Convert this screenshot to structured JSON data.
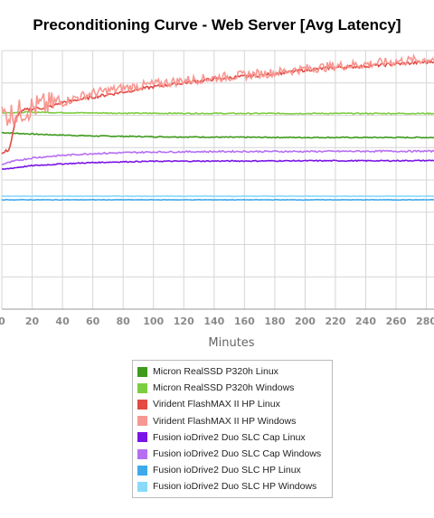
{
  "chart_data": {
    "type": "line",
    "title": "Preconditioning Curve - Web Server [Avg Latency]",
    "xlabel": "Minutes",
    "ylabel": "",
    "xlim": [
      0,
      285
    ],
    "ylim": [
      0,
      1
    ],
    "x_ticks": [
      "0",
      "20",
      "40",
      "60",
      "80",
      "100",
      "120",
      "140",
      "160",
      "180",
      "200",
      "220",
      "240",
      "260",
      "280"
    ],
    "grid": true,
    "legend_position": "bottom",
    "series": [
      {
        "name": "Micron RealSSD P320h Linux",
        "color": "#3f9a1d",
        "x": [
          0,
          10,
          30,
          60,
          100,
          150,
          200,
          250,
          285
        ],
        "y": [
          0.683,
          0.68,
          0.675,
          0.67,
          0.667,
          0.665,
          0.664,
          0.664,
          0.664
        ]
      },
      {
        "name": "Micron RealSSD P320h Windows",
        "color": "#7ccd3f",
        "x": [
          0,
          20,
          40,
          80,
          150,
          200,
          250,
          285
        ],
        "y": [
          0.76,
          0.762,
          0.76,
          0.758,
          0.757,
          0.757,
          0.757,
          0.757
        ]
      },
      {
        "name": "Virident FlashMAX II HP Linux",
        "color": "#e34a44",
        "x": [
          0,
          5,
          10,
          15,
          20,
          30,
          40,
          60,
          80,
          100,
          120,
          140,
          160,
          180,
          200,
          220,
          240,
          260,
          280,
          285
        ],
        "y": [
          0.6,
          0.62,
          0.75,
          0.77,
          0.775,
          0.78,
          0.8,
          0.82,
          0.84,
          0.86,
          0.875,
          0.89,
          0.9,
          0.91,
          0.925,
          0.935,
          0.94,
          0.948,
          0.955,
          0.96
        ]
      },
      {
        "name": "Virident FlashMAX II HP Windows",
        "color": "#f79791",
        "x": [
          0,
          10,
          20,
          30,
          40,
          50,
          60,
          80,
          100,
          120,
          140,
          160,
          180,
          200,
          220,
          240,
          260,
          280,
          285
        ],
        "y": [
          0.75,
          0.76,
          0.78,
          0.79,
          0.8,
          0.82,
          0.835,
          0.855,
          0.87,
          0.885,
          0.895,
          0.905,
          0.915,
          0.93,
          0.94,
          0.948,
          0.958,
          0.966,
          0.968
        ]
      },
      {
        "name": "Fusion ioDrive2 Duo SLC Cap Linux",
        "color": "#7a14e6",
        "x": [
          0,
          10,
          20,
          40,
          60,
          80,
          100,
          150,
          200,
          250,
          285
        ],
        "y": [
          0.54,
          0.548,
          0.555,
          0.562,
          0.567,
          0.57,
          0.572,
          0.573,
          0.574,
          0.574,
          0.575
        ]
      },
      {
        "name": "Fusion ioDrive2 Duo SLC Cap Windows",
        "color": "#b66ff2",
        "x": [
          0,
          10,
          20,
          40,
          60,
          80,
          100,
          150,
          200,
          250,
          285
        ],
        "y": [
          0.56,
          0.575,
          0.585,
          0.595,
          0.602,
          0.605,
          0.608,
          0.61,
          0.61,
          0.611,
          0.611
        ]
      },
      {
        "name": "Fusion ioDrive2 Duo SLC HP Linux",
        "color": "#3fa9ea",
        "x": [
          0,
          50,
          100,
          150,
          200,
          250,
          285
        ],
        "y": [
          0.423,
          0.423,
          0.423,
          0.423,
          0.423,
          0.423,
          0.423
        ]
      },
      {
        "name": "Fusion ioDrive2 Duo SLC HP Windows",
        "color": "#8ad9f8",
        "x": [
          0,
          50,
          100,
          150,
          200,
          250,
          285
        ],
        "y": [
          0.437,
          0.437,
          0.437,
          0.437,
          0.437,
          0.437,
          0.437
        ]
      }
    ]
  }
}
